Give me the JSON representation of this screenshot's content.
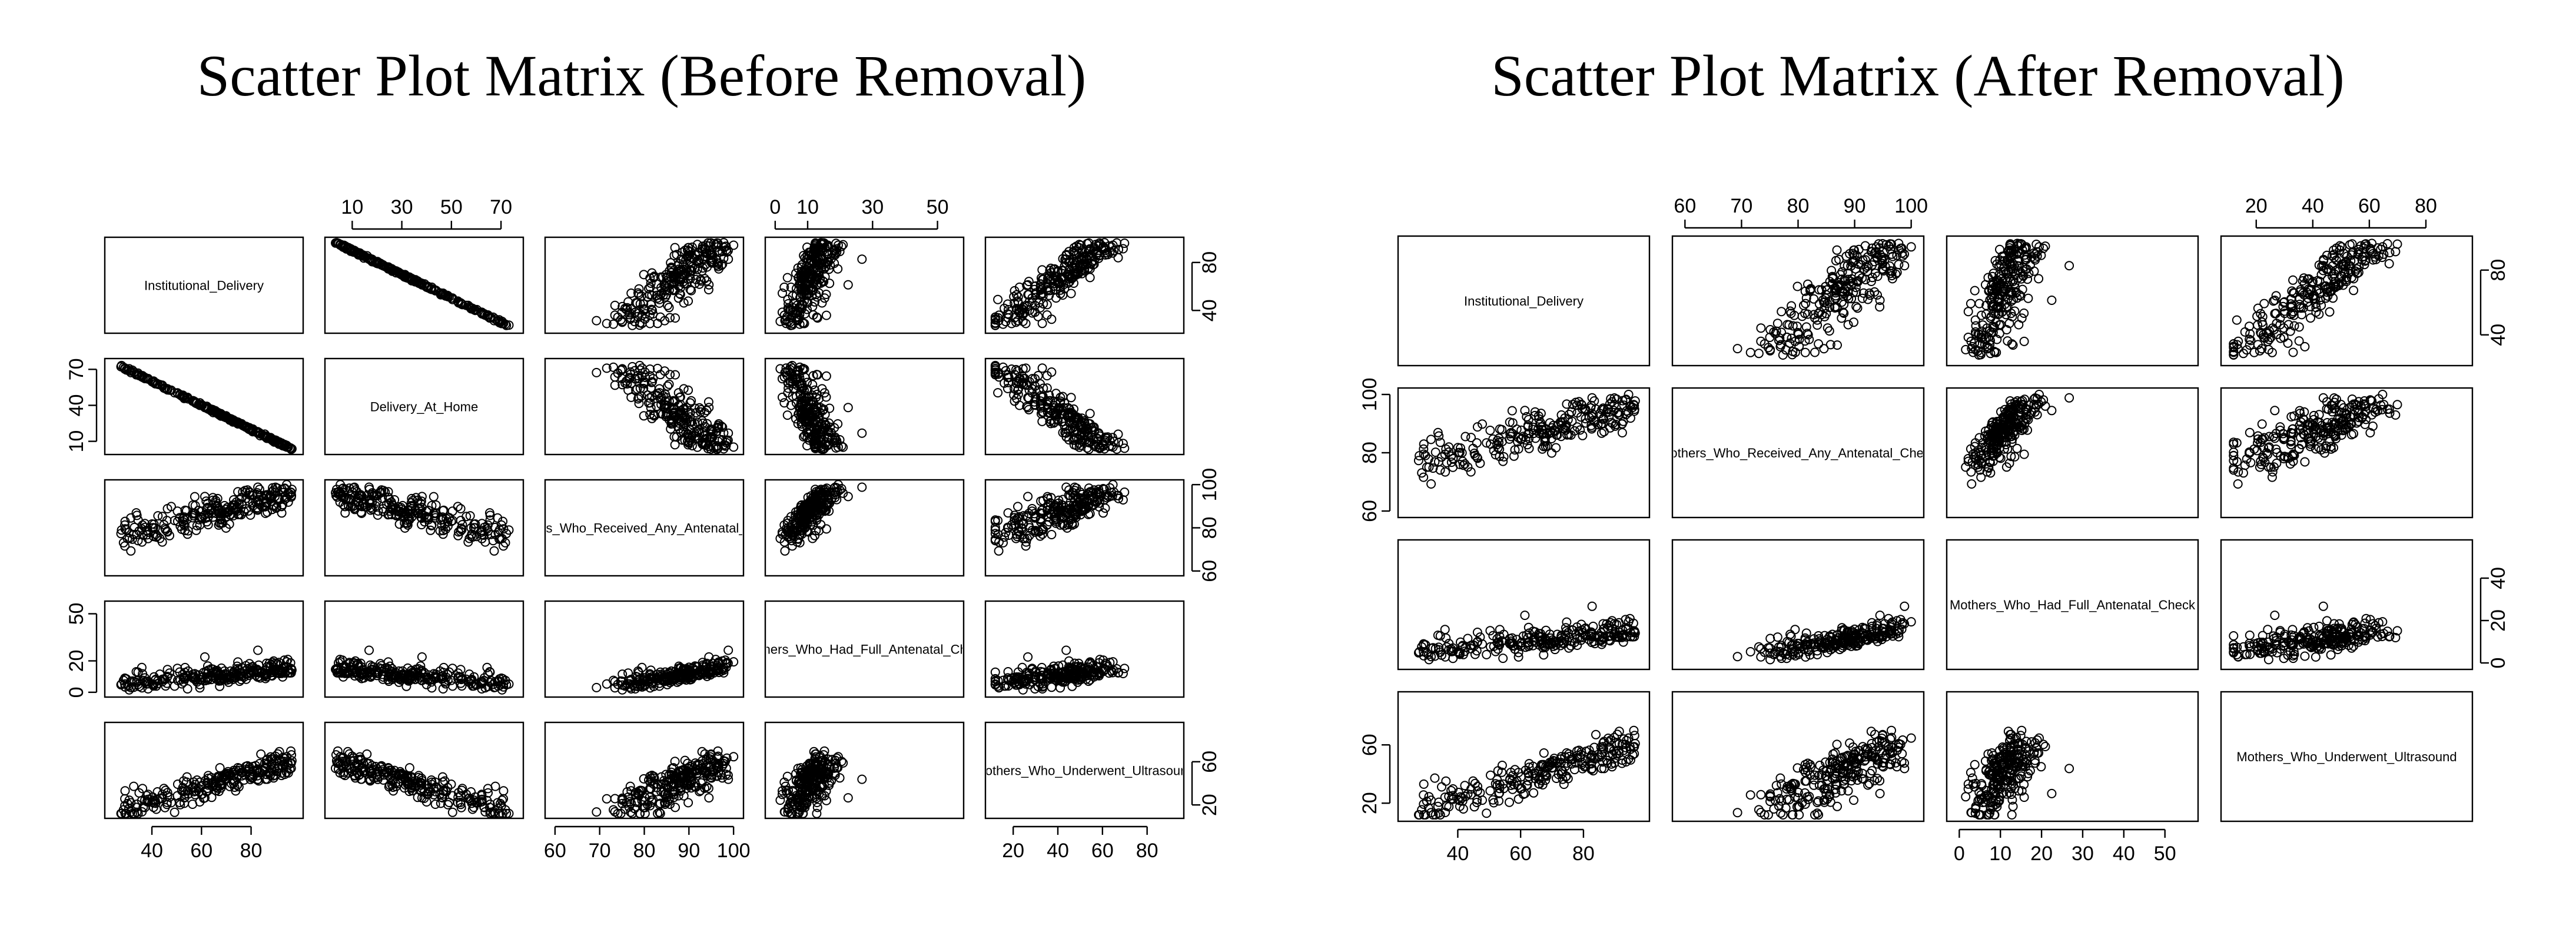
{
  "chart_data": [
    {
      "type": "scatter",
      "title": "Scatter Plot Matrix (Before Removal)",
      "variables": [
        {
          "name": "Institutional_Delivery",
          "range": [
            25,
            97
          ],
          "ticks": [
            40,
            60,
            80
          ],
          "right_ticks": [
            40,
            80
          ]
        },
        {
          "name": "Delivery_At_Home",
          "range": [
            3,
            75
          ],
          "ticks": [
            10,
            30,
            50,
            70
          ],
          "left_ticks": [
            10,
            40,
            70
          ]
        },
        {
          "name": "Mothers_Who_Received_Any_Antenatal_Check",
          "range": [
            60,
            100
          ],
          "ticks": [
            60,
            70,
            80,
            90,
            100
          ],
          "right_ticks": [
            60,
            80,
            100
          ]
        },
        {
          "name": "Mothers_Who_Had_Full_Antenatal_Check",
          "range": [
            0,
            55
          ],
          "ticks": [
            0,
            10,
            30,
            50
          ],
          "left_ticks": [
            0,
            20,
            50
          ]
        },
        {
          "name": "Mothers_Who_Underwent_Ultrasound",
          "range": [
            12,
            92
          ],
          "ticks": [
            20,
            40,
            60,
            80
          ],
          "right_ticks": [
            20,
            60
          ]
        }
      ],
      "n_points": 250
    },
    {
      "type": "scatter",
      "title": "Scatter Plot Matrix (After Removal)",
      "variables": [
        {
          "name": "Institutional_Delivery",
          "range": [
            25,
            97
          ],
          "ticks": [
            40,
            60,
            80
          ],
          "right_ticks": [
            40,
            80
          ]
        },
        {
          "name": "Mothers_Who_Received_Any_Antenatal_Check",
          "range": [
            60,
            100
          ],
          "ticks": [
            60,
            70,
            80,
            90,
            100
          ],
          "left_ticks": [
            60,
            80,
            100
          ]
        },
        {
          "name": "Mothers_Who_Had_Full_Antenatal_Check",
          "range": [
            0,
            55
          ],
          "ticks": [
            0,
            10,
            20,
            30,
            40,
            50
          ],
          "right_ticks": [
            0,
            20,
            40
          ]
        },
        {
          "name": "Mothers_Who_Underwent_Ultrasound",
          "range": [
            12,
            92
          ],
          "ticks": [
            20,
            40,
            60,
            80
          ],
          "left_ticks": [
            20,
            60
          ]
        }
      ],
      "n_points": 250
    }
  ]
}
